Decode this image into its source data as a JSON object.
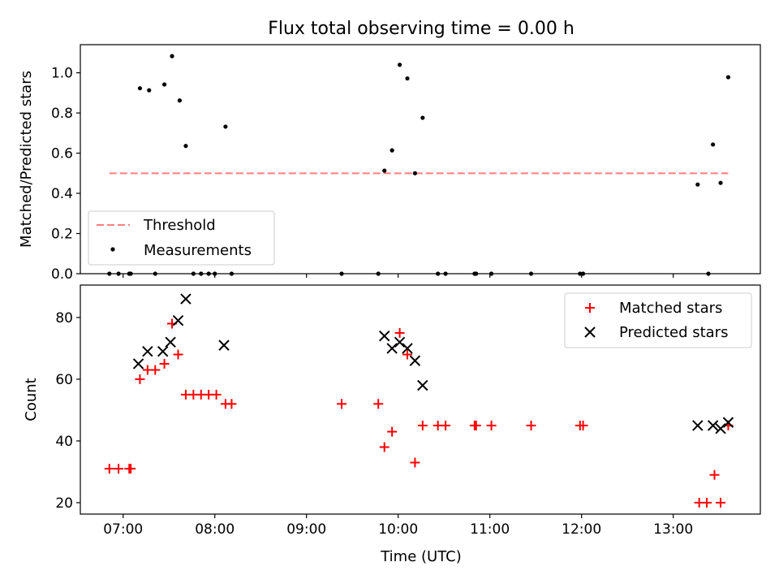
{
  "chart_data": [
    {
      "type": "scatter",
      "title": "Flux total observing time = 0.00 h",
      "xlabel": "",
      "ylabel": "Matched/Predicted stars",
      "xlim": [
        "06:32",
        "13:57"
      ],
      "ylim": [
        0,
        1.14
      ],
      "yticks": [
        "0.0",
        "0.2",
        "0.4",
        "0.6",
        "0.8",
        "1.0"
      ],
      "grid": false,
      "legend_position": "lower-left",
      "legend": {
        "threshold": "Threshold",
        "measurements": "Measurements"
      },
      "threshold": {
        "name": "Threshold",
        "y": 0.5,
        "x_start": "06:51",
        "x_end": "13:36",
        "color": "#ff7f7f"
      },
      "series": [
        {
          "name": "Measurements",
          "color": "#000000",
          "points": [
            [
              "06:51",
              0
            ],
            [
              "06:57",
              0
            ],
            [
              "07:04",
              0
            ],
            [
              "07:05",
              0
            ],
            [
              "07:11",
              0.923
            ],
            [
              "07:17",
              0.913
            ],
            [
              "07:21",
              0
            ],
            [
              "07:27",
              0.942
            ],
            [
              "07:32",
              1.083
            ],
            [
              "07:37",
              0.862
            ],
            [
              "07:41",
              0.636
            ],
            [
              "07:46",
              0
            ],
            [
              "07:51",
              0
            ],
            [
              "07:56",
              0
            ],
            [
              "08:00",
              0
            ],
            [
              "08:07",
              0.732
            ],
            [
              "08:11",
              0
            ],
            [
              "09:23",
              0
            ],
            [
              "09:47",
              0
            ],
            [
              "09:51",
              0.513
            ],
            [
              "09:56",
              0.614
            ],
            [
              "10:01",
              1.04
            ],
            [
              "10:06",
              0.972
            ],
            [
              "10:11",
              0.5
            ],
            [
              "10:16",
              0.776
            ],
            [
              "10:26",
              0
            ],
            [
              "10:31",
              0
            ],
            [
              "10:50",
              0
            ],
            [
              "10:51",
              0
            ],
            [
              "11:01",
              0
            ],
            [
              "11:27",
              0
            ],
            [
              "11:59",
              0
            ],
            [
              "12:01",
              0
            ],
            [
              "13:16",
              0.444
            ],
            [
              "13:23",
              0
            ],
            [
              "13:26",
              0.643
            ],
            [
              "13:31",
              0.452
            ],
            [
              "13:36",
              0.978
            ]
          ]
        }
      ]
    },
    {
      "type": "scatter",
      "title": "",
      "xlabel": "Time (UTC)",
      "ylabel": "Count",
      "xlim": [
        "06:32",
        "13:57"
      ],
      "ylim": [
        16.3,
        90.5
      ],
      "xticks": [
        "07:00",
        "08:00",
        "09:00",
        "10:00",
        "11:00",
        "12:00",
        "13:00"
      ],
      "yticks": [
        "20",
        "40",
        "60",
        "80"
      ],
      "grid": false,
      "legend_position": "upper-right",
      "series": [
        {
          "name": "Matched stars",
          "marker": "plus",
          "color": "#ff0000",
          "points": [
            [
              "06:51",
              31
            ],
            [
              "06:57",
              31
            ],
            [
              "07:04",
              31
            ],
            [
              "07:05",
              31
            ],
            [
              "07:11",
              60
            ],
            [
              "07:16",
              63
            ],
            [
              "07:21",
              63
            ],
            [
              "07:27",
              65
            ],
            [
              "07:32",
              78
            ],
            [
              "07:36",
              68
            ],
            [
              "07:41",
              55
            ],
            [
              "07:46",
              55
            ],
            [
              "07:51",
              55
            ],
            [
              "07:56",
              55
            ],
            [
              "08:01",
              55
            ],
            [
              "08:07",
              52
            ],
            [
              "08:11",
              52
            ],
            [
              "09:23",
              52
            ],
            [
              "09:47",
              52
            ],
            [
              "09:51",
              38
            ],
            [
              "09:56",
              43
            ],
            [
              "10:01",
              75
            ],
            [
              "10:06",
              68
            ],
            [
              "10:11",
              33
            ],
            [
              "10:16",
              45
            ],
            [
              "10:26",
              45
            ],
            [
              "10:31",
              45
            ],
            [
              "10:50",
              45
            ],
            [
              "10:51",
              45
            ],
            [
              "11:01",
              45
            ],
            [
              "11:27",
              45
            ],
            [
              "11:59",
              45
            ],
            [
              "12:01",
              45
            ],
            [
              "13:17",
              20
            ],
            [
              "13:22",
              20
            ],
            [
              "13:27",
              29
            ],
            [
              "13:31",
              20
            ],
            [
              "13:36",
              45
            ]
          ]
        },
        {
          "name": "Predicted stars",
          "marker": "x",
          "color": "#000000",
          "points": [
            [
              "07:10",
              65
            ],
            [
              "07:16",
              69
            ],
            [
              "07:26",
              69
            ],
            [
              "07:31",
              72
            ],
            [
              "07:36",
              79
            ],
            [
              "07:41",
              86
            ],
            [
              "08:06",
              71
            ],
            [
              "09:51",
              74
            ],
            [
              "09:56",
              70
            ],
            [
              "10:01",
              72
            ],
            [
              "10:06",
              70
            ],
            [
              "10:11",
              66
            ],
            [
              "10:16",
              58
            ],
            [
              "13:16",
              45
            ],
            [
              "13:26",
              45
            ],
            [
              "13:31",
              44
            ],
            [
              "13:36",
              46
            ]
          ]
        }
      ]
    }
  ]
}
